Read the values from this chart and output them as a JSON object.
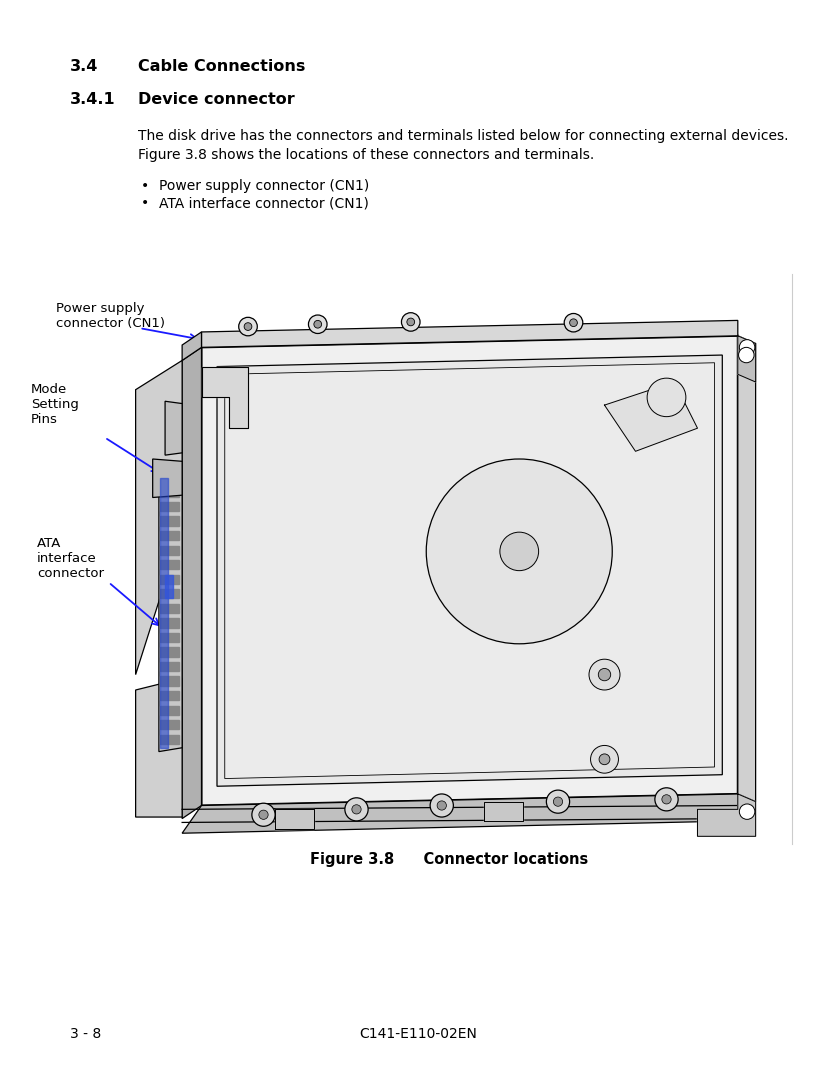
{
  "page_bg": "#ffffff",
  "heading1": "3.4",
  "heading1_text": "Cable Connections",
  "heading2": "3.4.1",
  "heading2_text": "Device connector",
  "body_line1": "The disk drive has the connectors and terminals listed below for connecting external devices.",
  "body_line2": "Figure 3.8 shows the locations of these connectors and terminals.",
  "bullet1": "Power supply connector (CN1)",
  "bullet2": "ATA interface connector (CN1)",
  "label1": "Power supply\nconnector (CN1)",
  "label2": "Mode\nSetting\nPins",
  "label3": "ATA\ninterface\nconnector",
  "fig_caption_bold": "Figure 3.8",
  "fig_caption_normal": "    Connector locations",
  "footer_left": "3 - 8",
  "footer_center": "C141-E110-02EN",
  "text_color": "#000000",
  "arrow_color": "#1a1aff",
  "edge_color": "#000000",
  "white": "#ffffff",
  "light_gray": "#e8e8e8",
  "mid_gray": "#cccccc",
  "dark_gray": "#888888"
}
